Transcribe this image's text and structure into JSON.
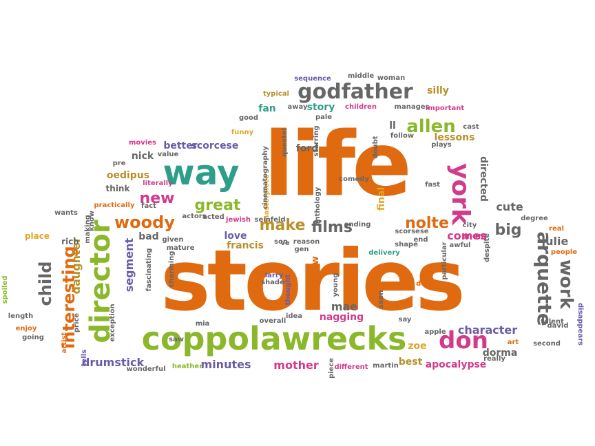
{
  "words": [
    {
      "text": "life",
      "color": "#e06a10",
      "rot": 0
    },
    {
      "text": "stories",
      "color": "#e06a10",
      "rot": 0
    },
    {
      "text": "coppolawrecks",
      "color": "#8ab82a",
      "rot": 0
    },
    {
      "text": "way",
      "color": "#2e9e8a",
      "rot": 0
    },
    {
      "text": "director",
      "color": "#8ab82a",
      "rot": -90
    },
    {
      "text": "godfather",
      "color": "#666666",
      "rot": 0
    },
    {
      "text": "york",
      "color": "#d23a8a",
      "rot": 90
    },
    {
      "text": "arquette",
      "color": "#666666",
      "rot": 90
    },
    {
      "text": "don",
      "color": "#d23a8a",
      "rot": 0
    },
    {
      "text": "allen",
      "color": "#8ab82a",
      "rot": 0
    },
    {
      "text": "woody",
      "color": "#e06a10",
      "rot": 0
    },
    {
      "text": "great",
      "color": "#8ab82a",
      "rot": 0
    },
    {
      "text": "make",
      "color": "#b8902a",
      "rot": 0
    },
    {
      "text": "films",
      "color": "#666666",
      "rot": 0
    },
    {
      "text": "nolte",
      "color": "#e06a10",
      "rot": 0
    },
    {
      "text": "interesting",
      "color": "#e06a10",
      "rot": -90
    },
    {
      "text": "child",
      "color": "#666666",
      "rot": -90
    },
    {
      "text": "new",
      "color": "#d23a8a",
      "rot": 0
    },
    {
      "text": "work",
      "color": "#666666",
      "rot": 90
    },
    {
      "text": "big",
      "color": "#666666",
      "rot": 0
    },
    {
      "text": "minutes",
      "color": "#6a5aa8",
      "rot": 0
    },
    {
      "text": "drumstick",
      "color": "#6a5aa8",
      "rot": 0
    },
    {
      "text": "mother",
      "color": "#d23a8a",
      "rot": 0
    },
    {
      "text": "best",
      "color": "#b8902a",
      "rot": 0
    },
    {
      "text": "apocalypse",
      "color": "#d23a8a",
      "rot": 0
    },
    {
      "text": "dorma",
      "color": "#666666",
      "rot": 0
    },
    {
      "text": "character",
      "color": "#6a5aa8",
      "rot": 0
    },
    {
      "text": "comes",
      "color": "#d23a8a",
      "rot": 0
    },
    {
      "text": "cute",
      "color": "#666666",
      "rot": 0
    },
    {
      "text": "julie",
      "color": "#666666",
      "rot": 0
    },
    {
      "text": "mae",
      "color": "#666666",
      "rot": 0
    },
    {
      "text": "nagging",
      "color": "#d23a8a",
      "rot": 0
    },
    {
      "text": "farrow",
      "color": "#e06a10",
      "rot": -90
    },
    {
      "text": "love",
      "color": "#6a5aa8",
      "rot": 0
    },
    {
      "text": "francis",
      "color": "#b8902a",
      "rot": 0
    },
    {
      "text": "daughter",
      "color": "#b8902a",
      "rot": -90
    },
    {
      "text": "segment",
      "color": "#6a5aa8",
      "rot": -90
    },
    {
      "text": "oedipus",
      "color": "#b8902a",
      "rot": 0
    },
    {
      "text": "better",
      "color": "#6a5aa8",
      "rot": 0
    },
    {
      "text": "scorcese",
      "color": "#6a5aa8",
      "rot": 0
    },
    {
      "text": "nick",
      "color": "#666666",
      "rot": 0
    },
    {
      "text": "fan",
      "color": "#2e9e8a",
      "rot": 0
    },
    {
      "text": "story",
      "color": "#2e9e8a",
      "rot": 0
    },
    {
      "text": "silly",
      "color": "#b8902a",
      "rot": 0
    },
    {
      "text": "lessons",
      "color": "#b8902a",
      "rot": 0
    },
    {
      "text": "directed",
      "color": "#666666",
      "rot": 90
    },
    {
      "text": "final",
      "color": "#e0a62a",
      "rot": -90
    },
    {
      "text": "mom",
      "color": "#d23a8a",
      "rot": 0
    },
    {
      "text": "bad",
      "color": "#666666",
      "rot": 0
    },
    {
      "text": "zoe",
      "color": "#e0a62a",
      "rot": 0
    },
    {
      "text": "ford",
      "color": "#666666",
      "rot": 0
    },
    {
      "text": "ll",
      "color": "#666666",
      "rot": 0
    },
    {
      "text": "think",
      "color": "#666666",
      "rot": 0
    },
    {
      "text": "rich",
      "color": "#666666",
      "rot": 0
    },
    {
      "text": "place",
      "color": "#e0a62a",
      "rot": 0
    },
    {
      "text": "children",
      "color": "#d23a8a",
      "rot": 0
    },
    {
      "text": "manages",
      "color": "#666666",
      "rot": 0
    },
    {
      "text": "away",
      "color": "#666666",
      "rot": 0
    },
    {
      "text": "good",
      "color": "#666666",
      "rot": 0
    },
    {
      "text": "funny",
      "color": "#e0a62a",
      "rot": 0
    },
    {
      "text": "masterpiece",
      "color": "#e0a62a",
      "rot": -90
    },
    {
      "text": "starring",
      "color": "#666666",
      "rot": -90
    },
    {
      "text": "questel",
      "color": "#666666",
      "rot": -90
    },
    {
      "text": "follow",
      "color": "#666666",
      "rot": 0
    },
    {
      "text": "plays",
      "color": "#666666",
      "rot": 0
    },
    {
      "text": "fast",
      "color": "#666666",
      "rot": 0
    },
    {
      "text": "ending",
      "color": "#666666",
      "rot": 0
    },
    {
      "text": "end",
      "color": "#666666",
      "rot": 0
    },
    {
      "text": "awful",
      "color": "#666666",
      "rot": 0
    },
    {
      "text": "delivery",
      "color": "#2e9e8a",
      "rot": 0
    },
    {
      "text": "son",
      "color": "#666666",
      "rot": 0
    },
    {
      "text": "scorsese",
      "color": "#666666",
      "rot": 0
    },
    {
      "text": "overall",
      "color": "#666666",
      "rot": 0
    },
    {
      "text": "thought",
      "color": "#6a5aa8",
      "rot": -90
    },
    {
      "text": "exception",
      "color": "#666666",
      "rot": -90
    },
    {
      "text": "price",
      "color": "#666666",
      "rot": -90
    },
    {
      "text": "heather",
      "color": "#8ab82a",
      "rot": 0
    },
    {
      "text": "martin",
      "color": "#666666",
      "rot": 0
    },
    {
      "text": "apple",
      "color": "#666666",
      "rot": 0
    },
    {
      "text": "art",
      "color": "#e06a10",
      "rot": 0
    },
    {
      "text": "david",
      "color": "#666666",
      "rot": 0
    },
    {
      "text": "really",
      "color": "#666666",
      "rot": 0
    },
    {
      "text": "degree",
      "color": "#666666",
      "rot": 0
    },
    {
      "text": "people",
      "color": "#e06a10",
      "rot": 0
    },
    {
      "text": "disappears",
      "color": "#6a5aa8",
      "rot": 90
    },
    {
      "text": "real",
      "color": "#e06a10",
      "rot": 0
    },
    {
      "text": "spoiled",
      "color": "#8ab82a",
      "rot": -90
    },
    {
      "text": "length",
      "color": "#666666",
      "rot": 0
    },
    {
      "text": "enjoy",
      "color": "#e06a10",
      "rot": 0
    },
    {
      "text": "artist",
      "color": "#e06a10",
      "rot": -90
    },
    {
      "text": "tells",
      "color": "#6a5aa8",
      "rot": -90
    },
    {
      "text": "wants",
      "color": "#666666",
      "rot": 0
    },
    {
      "text": "practically",
      "color": "#e06a10",
      "rot": 0
    },
    {
      "text": "fact",
      "color": "#666666",
      "rot": 0
    },
    {
      "text": "literally",
      "color": "#d23a8a",
      "rot": 0
    },
    {
      "text": "movies",
      "color": "#d23a8a",
      "rot": 0
    },
    {
      "text": "value",
      "color": "#666666",
      "rot": 0
    },
    {
      "text": "cinematography",
      "color": "#666666",
      "rot": -90
    },
    {
      "text": "middle",
      "color": "#666666",
      "rot": 0
    },
    {
      "text": "woman",
      "color": "#666666",
      "rot": 0
    },
    {
      "text": "sequence",
      "color": "#6a5aa8",
      "rot": 0
    },
    {
      "text": "typical",
      "color": "#b8902a",
      "rot": 0
    },
    {
      "text": "important",
      "color": "#d23a8a",
      "rot": 0
    },
    {
      "text": "cast",
      "color": "#666666",
      "rot": 0
    },
    {
      "text": "larry",
      "color": "#6a5aa8",
      "rot": 0
    },
    {
      "text": "shade",
      "color": "#666666",
      "rot": 0
    },
    {
      "text": "idea",
      "color": "#666666",
      "rot": 0
    },
    {
      "text": "say",
      "color": "#666666",
      "rot": 0
    },
    {
      "text": "delight",
      "color": "#e06a10",
      "rot": 0
    },
    {
      "text": "second",
      "color": "#666666",
      "rot": 0
    },
    {
      "text": "talent",
      "color": "#666666",
      "rot": 0
    },
    {
      "text": "different",
      "color": "#d23a8a",
      "rot": 0
    },
    {
      "text": "wonderful",
      "color": "#666666",
      "rot": 0
    },
    {
      "text": "given",
      "color": "#666666",
      "rot": 0
    },
    {
      "text": "mature",
      "color": "#666666",
      "rot": 0
    },
    {
      "text": "acted",
      "color": "#666666",
      "rot": 0
    },
    {
      "text": "jewish",
      "color": "#d23a8a",
      "rot": 0
    },
    {
      "text": "seinfeld",
      "color": "#666666",
      "rot": 0
    },
    {
      "text": "actors",
      "color": "#666666",
      "rot": 0
    },
    {
      "text": "reason",
      "color": "#666666",
      "rot": 0
    },
    {
      "text": "comedy",
      "color": "#666666",
      "rot": 0
    },
    {
      "text": "anthology",
      "color": "#666666",
      "rot": -90
    },
    {
      "text": "shape",
      "color": "#666666",
      "rot": 0
    },
    {
      "text": "particular",
      "color": "#666666",
      "rot": -90
    },
    {
      "text": "despite",
      "color": "#666666",
      "rot": -90
    },
    {
      "text": "city",
      "color": "#666666",
      "rot": 0
    },
    {
      "text": "fascinating",
      "color": "#666666",
      "rot": -90
    },
    {
      "text": "making",
      "color": "#666666",
      "rot": -90
    },
    {
      "text": "going",
      "color": "#666666",
      "rot": 0
    },
    {
      "text": "pale",
      "color": "#666666",
      "rot": 0
    },
    {
      "text": "doubt",
      "color": "#666666",
      "rot": -90
    },
    {
      "text": "pre",
      "color": "#666666",
      "rot": 0
    },
    {
      "text": "ve",
      "color": "#666666",
      "rot": 0
    },
    {
      "text": "gen",
      "color": "#666666",
      "rot": 0
    },
    {
      "text": "mia",
      "color": "#666666",
      "rot": 0
    },
    {
      "text": "saw",
      "color": "#666666",
      "rot": 0
    },
    {
      "text": "piece",
      "color": "#666666",
      "rot": -90
    },
    {
      "text": "seen",
      "color": "#666666",
      "rot": -90
    },
    {
      "text": "young",
      "color": "#666666",
      "rot": -90
    },
    {
      "text": "charming",
      "color": "#666666",
      "rot": -90
    },
    {
      "text": "know",
      "color": "#666666",
      "rot": -90
    }
  ]
}
